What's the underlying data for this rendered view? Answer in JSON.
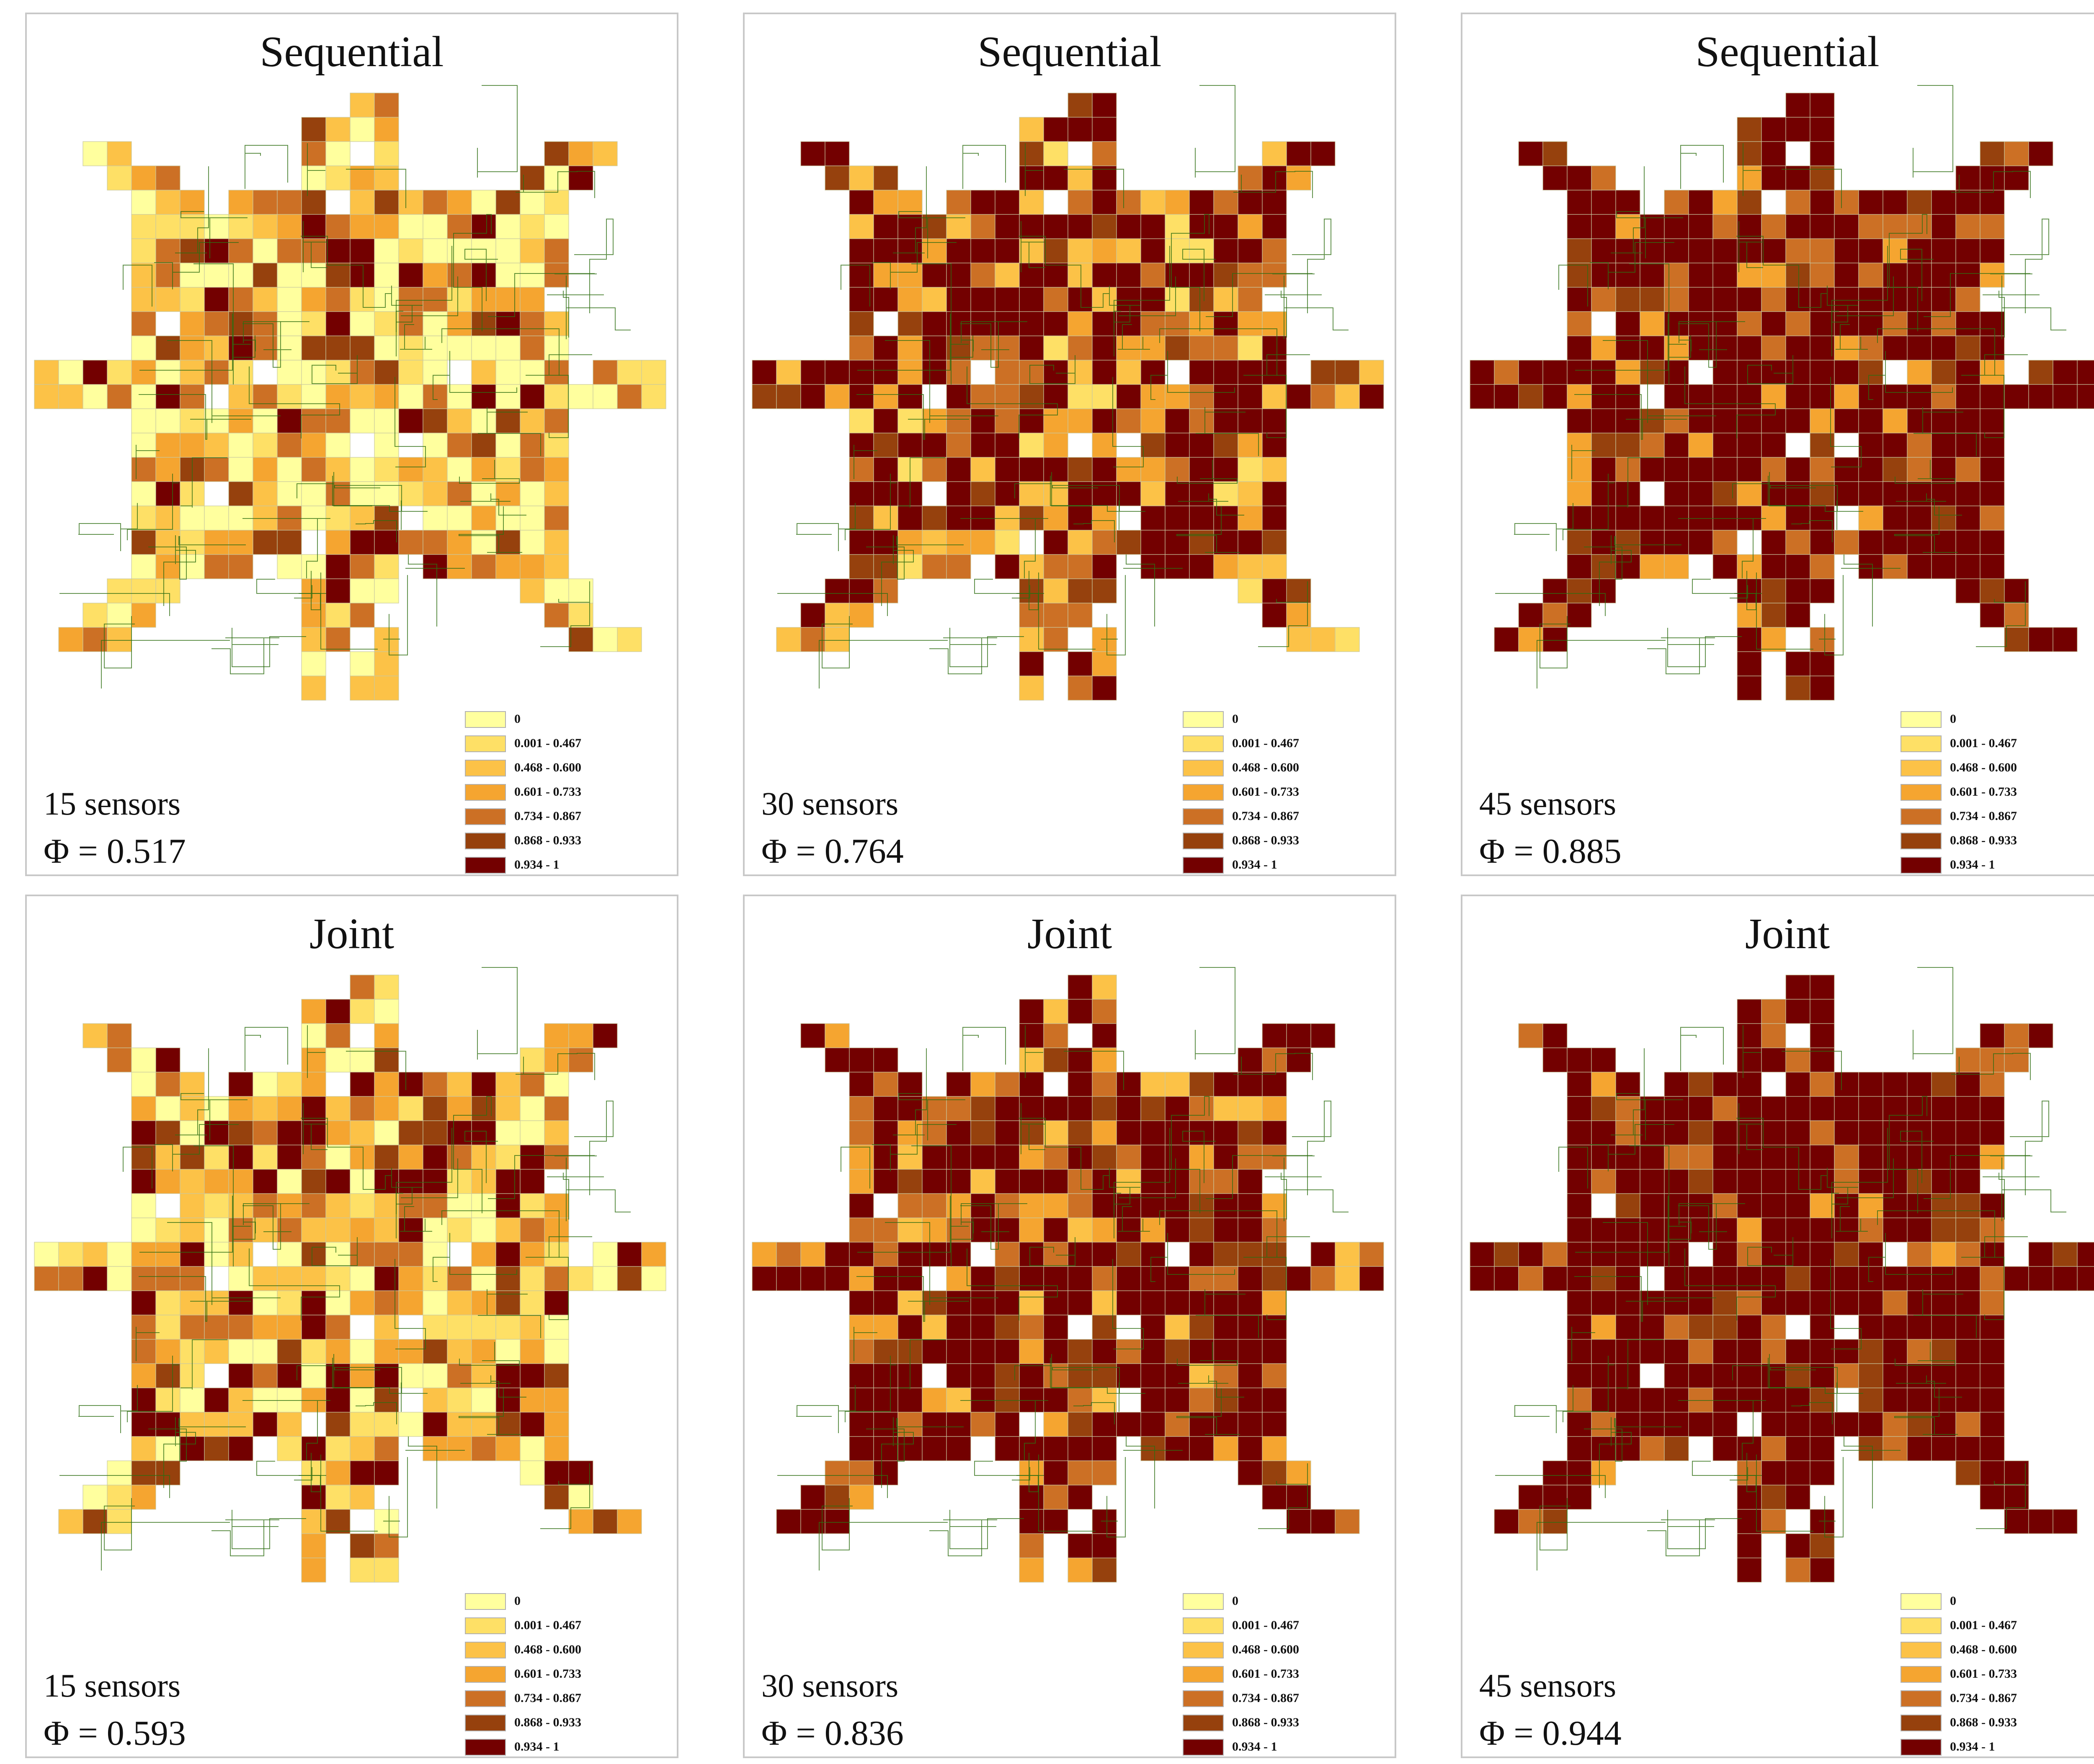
{
  "legend": {
    "classes": [
      {
        "label": "0",
        "color": "#ffff9e"
      },
      {
        "label": "0.001 - 0.467",
        "color": "#fee066"
      },
      {
        "label": "0.468 - 0.600",
        "color": "#fcc247"
      },
      {
        "label": "0.601 - 0.733",
        "color": "#f5a530"
      },
      {
        "label": "0.734 - 0.867",
        "color": "#cc7025"
      },
      {
        "label": "0.868 - 0.933",
        "color": "#96410d"
      },
      {
        "label": "0.934 - 1",
        "color": "#730000"
      }
    ]
  },
  "road_color": "#2e6e12",
  "panels": [
    {
      "title": "Sequential",
      "sensors": "15 sensors",
      "phi": "Φ = 0.517",
      "phi_value": 0.517
    },
    {
      "title": "Sequential",
      "sensors": "30 sensors",
      "phi": "Φ = 0.764",
      "phi_value": 0.764
    },
    {
      "title": "Sequential",
      "sensors": "45 sensors",
      "phi": "Φ = 0.885",
      "phi_value": 0.885
    },
    {
      "title": "Joint",
      "sensors": "15 sensors",
      "phi": "Φ = 0.593",
      "phi_value": 0.593
    },
    {
      "title": "Joint",
      "sensors": "30 sensors",
      "phi": "Φ = 0.836",
      "phi_value": 0.836
    },
    {
      "title": "Joint",
      "sensors": "45 sensors",
      "phi": "Φ = 0.944",
      "phi_value": 0.944
    }
  ]
}
